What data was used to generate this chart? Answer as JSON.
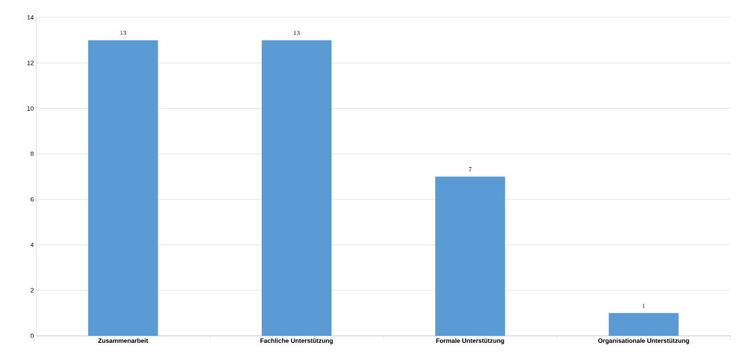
{
  "chart_data": {
    "type": "bar",
    "categories": [
      "Zusammenarbeit",
      "Fachliche Unterstützung",
      "Formale Unterstützung",
      "Organisationale Unterstützung"
    ],
    "values": [
      13,
      13,
      7,
      1
    ],
    "color": "#5b9bd5",
    "ylim": [
      0,
      14
    ],
    "yticks": [
      0,
      2,
      4,
      6,
      8,
      10,
      12,
      14
    ],
    "grid": "y",
    "data_labels": true
  }
}
